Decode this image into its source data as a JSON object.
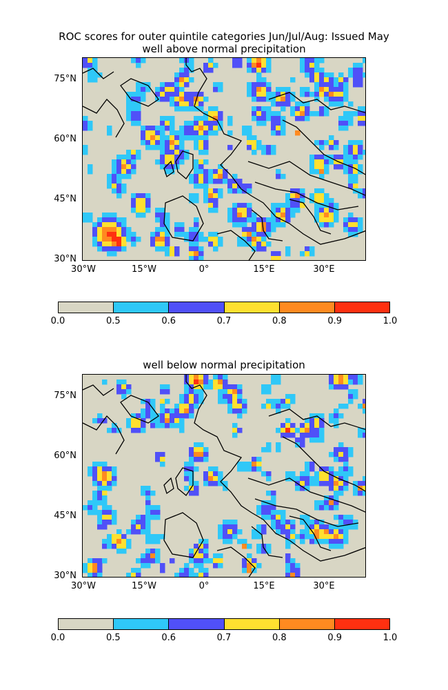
{
  "title_line1": "ROC scores for outer quintile categories Jun/Jul/Aug: Issued May",
  "panels": [
    {
      "subtitle": "well above normal precipitation"
    },
    {
      "subtitle": "well below normal precipitation"
    }
  ],
  "lat_labels": [
    "75°N",
    "60°N",
    "45°N",
    "30°N"
  ],
  "lon_labels": [
    "30°W",
    "15°W",
    "0°",
    "15°E",
    "30°E"
  ],
  "colorbar": {
    "ticks": [
      "0.0",
      "0.5",
      "0.6",
      "0.7",
      "0.8",
      "0.9",
      "1.0"
    ],
    "colors": [
      "#d8d6c4",
      "#2fc8f8",
      "#5050f8",
      "#ffe030",
      "#ff8a20",
      "#ff3010"
    ]
  },
  "chart_data": [
    {
      "type": "heatmap",
      "title": "well above normal precipitation",
      "lon_range": [
        -30,
        41
      ],
      "lat_range": [
        30,
        81
      ],
      "value_range": [
        0,
        1
      ],
      "levels": [
        0.0,
        0.5,
        0.6,
        0.7,
        0.8,
        0.9,
        1.0
      ]
    },
    {
      "type": "heatmap",
      "title": "well below normal precipitation",
      "lon_range": [
        -30,
        41
      ],
      "lat_range": [
        30,
        81
      ],
      "value_range": [
        0,
        1
      ],
      "levels": [
        0.0,
        0.5,
        0.6,
        0.7,
        0.8,
        0.9,
        1.0
      ]
    }
  ]
}
